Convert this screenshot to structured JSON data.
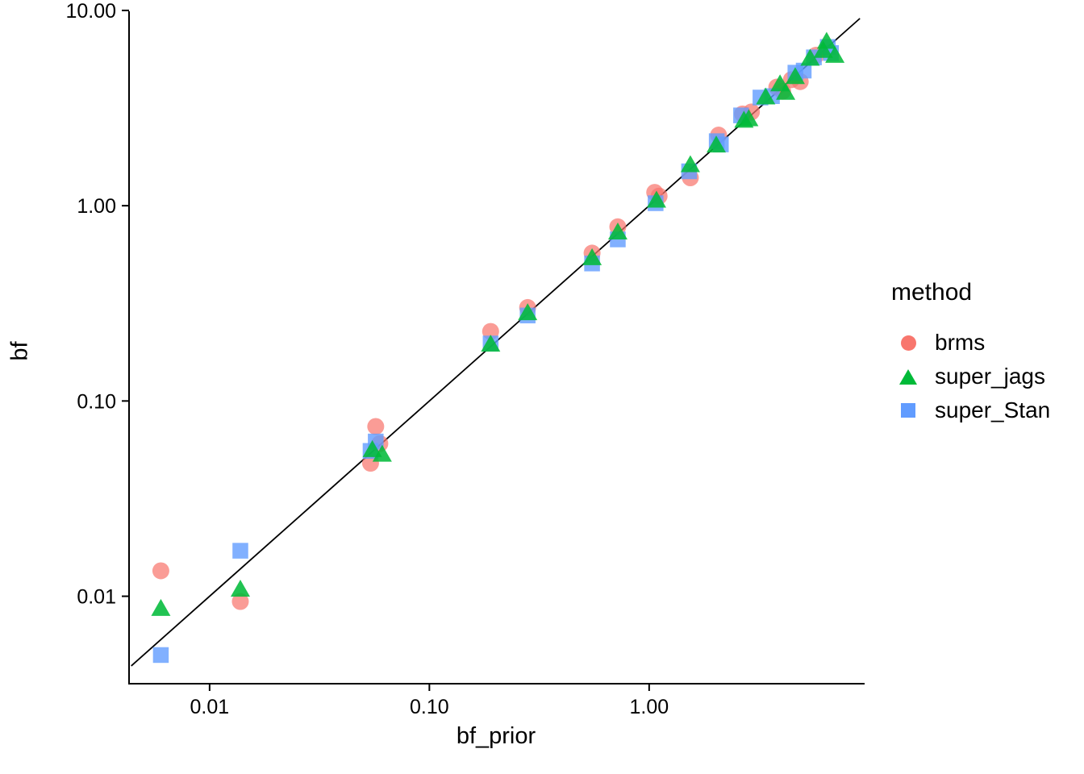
{
  "chart_data": {
    "type": "scatter",
    "title": "",
    "xlabel": "bf_prior",
    "ylabel": "bf",
    "x_scale": "log10",
    "y_scale": "log10",
    "x_range": [
      0.0043,
      9.4
    ],
    "y_range": [
      0.0036,
      9.9
    ],
    "grid": "off",
    "x_ticks": {
      "values": [
        0.01,
        0.1,
        1.0
      ],
      "labels": [
        "0.01",
        "0.10",
        "1.00"
      ]
    },
    "y_ticks": {
      "values": [
        0.01,
        0.1,
        1.0,
        10.0
      ],
      "labels": [
        "0.01",
        "0.10",
        "1.00",
        "10.00"
      ]
    },
    "reference_line": {
      "type": "identity",
      "slope": 1,
      "intercept": 0,
      "color": "#000000",
      "from": 0.0044,
      "to": 9.1
    },
    "legend": {
      "title": "method",
      "position": "right"
    },
    "series": [
      {
        "name": "brms",
        "marker": "circle",
        "color": "#F8766D",
        "points": [
          [
            0.006,
            0.0135
          ],
          [
            0.0138,
            0.0094
          ],
          [
            0.054,
            0.048
          ],
          [
            0.057,
            0.074
          ],
          [
            0.0595,
            0.0605
          ],
          [
            0.19,
            0.227
          ],
          [
            0.28,
            0.301
          ],
          [
            0.55,
            0.572
          ],
          [
            0.72,
            0.78
          ],
          [
            1.06,
            1.17
          ],
          [
            1.11,
            1.12
          ],
          [
            1.54,
            1.39
          ],
          [
            2.07,
            2.3
          ],
          [
            2.66,
            2.95
          ],
          [
            2.92,
            3.02
          ],
          [
            3.81,
            4.05
          ],
          [
            4.05,
            3.86
          ],
          [
            4.44,
            4.42
          ],
          [
            4.87,
            4.32
          ],
          [
            5.75,
            5.9
          ]
        ]
      },
      {
        "name": "super_jags",
        "marker": "triangle",
        "color": "#00BA38",
        "points": [
          [
            0.006,
            0.0086
          ],
          [
            0.0138,
            0.0108
          ],
          [
            0.055,
            0.056
          ],
          [
            0.061,
            0.053
          ],
          [
            0.19,
            0.194
          ],
          [
            0.28,
            0.281
          ],
          [
            0.55,
            0.538
          ],
          [
            0.72,
            0.728
          ],
          [
            1.08,
            1.06
          ],
          [
            1.54,
            1.61
          ],
          [
            2.02,
            2.03
          ],
          [
            2.7,
            2.72
          ],
          [
            2.84,
            2.77
          ],
          [
            3.39,
            3.58
          ],
          [
            3.94,
            4.18
          ],
          [
            4.18,
            3.78
          ],
          [
            4.62,
            4.55
          ],
          [
            5.4,
            5.65
          ],
          [
            6.2,
            6.2
          ],
          [
            6.42,
            6.9
          ],
          [
            7.0,
            5.85
          ]
        ]
      },
      {
        "name": "super_Stan",
        "marker": "square",
        "color": "#619CFF",
        "points": [
          [
            0.006,
            0.005
          ],
          [
            0.0138,
            0.0171
          ],
          [
            0.054,
            0.0555
          ],
          [
            0.057,
            0.062
          ],
          [
            0.19,
            0.197
          ],
          [
            0.28,
            0.274
          ],
          [
            0.55,
            0.506
          ],
          [
            0.72,
            0.672
          ],
          [
            1.07,
            1.03
          ],
          [
            1.52,
            1.5
          ],
          [
            2.03,
            2.14
          ],
          [
            2.12,
            2.06
          ],
          [
            2.62,
            2.9
          ],
          [
            3.21,
            3.58
          ],
          [
            3.62,
            3.64
          ],
          [
            4.63,
            4.8
          ],
          [
            5.05,
            4.92
          ],
          [
            5.62,
            5.75
          ],
          [
            6.5,
            6.5
          ],
          [
            6.72,
            6.05
          ]
        ]
      }
    ]
  }
}
